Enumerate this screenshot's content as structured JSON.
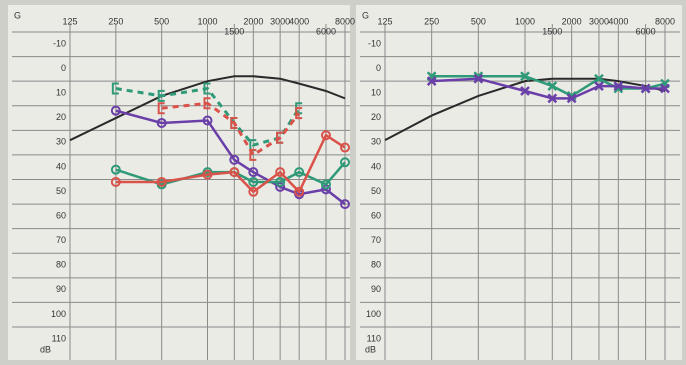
{
  "chart_data": [
    {
      "type": "line",
      "corner_label": "G",
      "y_unit_label": "dB",
      "xscale": "log",
      "xlim": [
        125,
        8000
      ],
      "ylim": [
        -10,
        110
      ],
      "y_inverted": true,
      "grid": true,
      "xticks": [
        125,
        250,
        500,
        1000,
        1500,
        2000,
        3000,
        4000,
        6000,
        8000
      ],
      "yticks": [
        -10,
        0,
        10,
        20,
        30,
        40,
        50,
        60,
        70,
        80,
        90,
        100,
        110
      ],
      "x": [
        125,
        250,
        500,
        1000,
        1500,
        2000,
        3000,
        4000,
        6000,
        8000
      ],
      "series": [
        {
          "color": "#2a2a2a",
          "marker": "none",
          "dashed": false,
          "values": [
            34,
            25,
            16,
            10,
            8,
            8,
            9,
            11,
            14,
            17
          ]
        },
        {
          "color": "#2e9a78",
          "marker": "bracket",
          "dashed": true,
          "values": [
            null,
            13,
            16,
            13,
            27,
            36,
            33,
            21,
            null,
            null
          ]
        },
        {
          "color": "#d9534a",
          "marker": "bracket",
          "dashed": true,
          "values": [
            null,
            null,
            21,
            19,
            27,
            40,
            33,
            23,
            null,
            null
          ]
        },
        {
          "color": "#6a3fa8",
          "marker": "circle",
          "dashed": false,
          "values": [
            null,
            22,
            27,
            26,
            42,
            47,
            53,
            56,
            54,
            60
          ]
        },
        {
          "color": "#2e9a78",
          "marker": "circle",
          "dashed": false,
          "values": [
            null,
            46,
            52,
            47,
            47,
            51,
            51,
            47,
            52,
            43
          ]
        },
        {
          "color": "#d9534a",
          "marker": "circle",
          "dashed": false,
          "values": [
            null,
            51,
            51,
            48,
            47,
            55,
            47,
            55,
            32,
            37
          ]
        }
      ]
    },
    {
      "type": "line",
      "corner_label": "G",
      "y_unit_label": "dB",
      "xscale": "log",
      "xlim": [
        125,
        8000
      ],
      "ylim": [
        -10,
        110
      ],
      "y_inverted": true,
      "grid": true,
      "xticks": [
        125,
        250,
        500,
        1000,
        1500,
        2000,
        3000,
        4000,
        6000,
        8000
      ],
      "yticks": [
        -10,
        0,
        10,
        20,
        30,
        40,
        50,
        60,
        70,
        80,
        90,
        100,
        110
      ],
      "x": [
        125,
        250,
        500,
        1000,
        1500,
        2000,
        3000,
        4000,
        6000,
        8000
      ],
      "series": [
        {
          "color": "#2a2a2a",
          "marker": "none",
          "dashed": false,
          "values": [
            34,
            24,
            16,
            10,
            9,
            9,
            9,
            10,
            12,
            14
          ]
        },
        {
          "color": "#2e9a78",
          "marker": "x",
          "dashed": false,
          "values": [
            null,
            8,
            8,
            8,
            12,
            16,
            9,
            13,
            13,
            11
          ]
        },
        {
          "color": "#6a3fa8",
          "marker": "x",
          "dashed": false,
          "values": [
            null,
            10,
            9,
            14,
            17,
            17,
            12,
            12,
            13,
            13
          ]
        }
      ]
    }
  ]
}
